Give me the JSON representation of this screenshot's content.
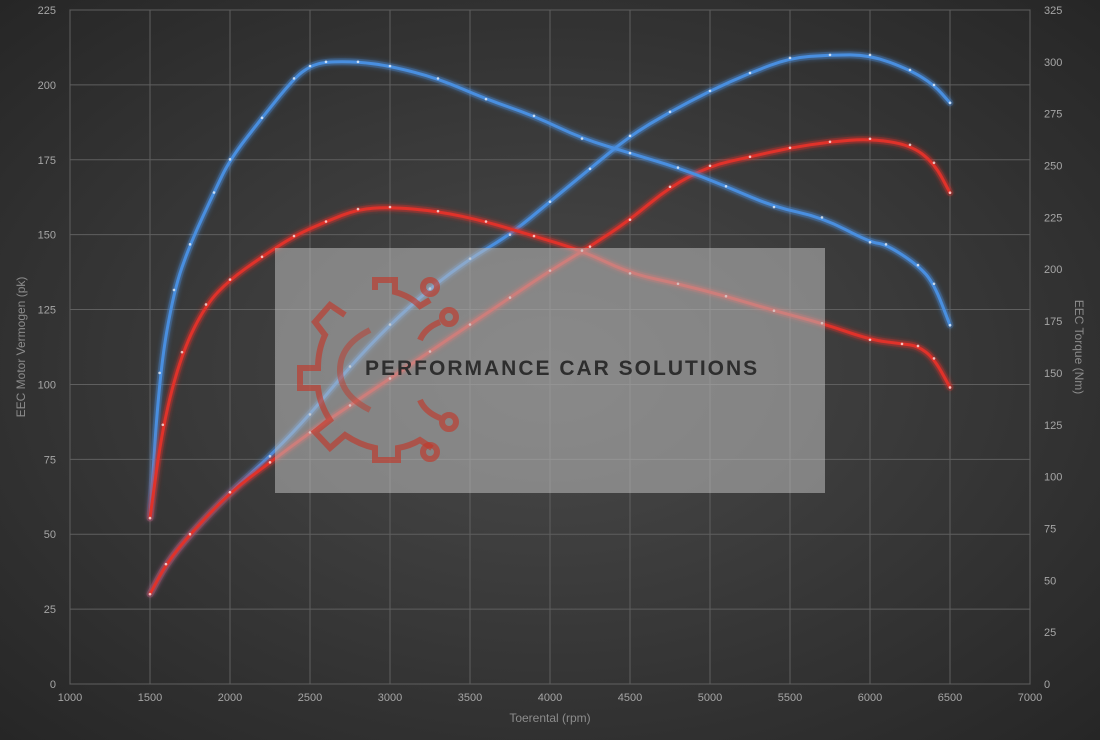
{
  "chart_data": {
    "type": "line",
    "title": "",
    "xlabel": "Toerental (rpm)",
    "ylabel_left": "EEC Motor Vermogen (pk)",
    "ylabel_right": "EEC Torque (Nm)",
    "xlim": [
      1000,
      7000
    ],
    "ylim_left": [
      0,
      225
    ],
    "ylim_right": [
      0,
      325
    ],
    "x_ticks": [
      1000,
      1500,
      2000,
      2500,
      3000,
      3500,
      4000,
      4500,
      5000,
      5500,
      6000,
      6500,
      7000
    ],
    "y_left_ticks": [
      0,
      25,
      50,
      75,
      100,
      125,
      150,
      175,
      200,
      225
    ],
    "y_right_ticks": [
      0,
      25,
      50,
      75,
      100,
      125,
      150,
      175,
      200,
      225,
      250,
      275,
      300,
      325
    ],
    "grid": true,
    "series": [
      {
        "axis": "left",
        "color": "#4a8fe0",
        "points": [
          [
            1500,
            30
          ],
          [
            1600,
            40
          ],
          [
            1750,
            50
          ],
          [
            2000,
            64
          ],
          [
            2250,
            76
          ],
          [
            2500,
            90
          ],
          [
            2750,
            106
          ],
          [
            3000,
            120
          ],
          [
            3250,
            132
          ],
          [
            3500,
            142
          ],
          [
            3750,
            150
          ],
          [
            4000,
            161
          ],
          [
            4250,
            172
          ],
          [
            4500,
            183
          ],
          [
            4750,
            191
          ],
          [
            5000,
            198
          ],
          [
            5250,
            204
          ],
          [
            5500,
            209
          ],
          [
            5750,
            210
          ],
          [
            6000,
            210
          ],
          [
            6250,
            205
          ],
          [
            6400,
            200
          ],
          [
            6500,
            194
          ]
        ]
      },
      {
        "axis": "left",
        "color": "#e0302a",
        "points": [
          [
            1500,
            30
          ],
          [
            1600,
            40
          ],
          [
            1750,
            50
          ],
          [
            2000,
            64
          ],
          [
            2250,
            74
          ],
          [
            2500,
            84
          ],
          [
            2750,
            93
          ],
          [
            3000,
            102
          ],
          [
            3250,
            111
          ],
          [
            3500,
            120
          ],
          [
            3750,
            129
          ],
          [
            4000,
            138
          ],
          [
            4250,
            146
          ],
          [
            4500,
            155
          ],
          [
            4750,
            166
          ],
          [
            5000,
            173
          ],
          [
            5250,
            176
          ],
          [
            5500,
            179
          ],
          [
            5750,
            181
          ],
          [
            6000,
            182
          ],
          [
            6250,
            180
          ],
          [
            6400,
            174
          ],
          [
            6500,
            164
          ]
        ]
      },
      {
        "axis": "right",
        "color": "#4a8fe0",
        "points": [
          [
            1500,
            80
          ],
          [
            1560,
            150
          ],
          [
            1650,
            190
          ],
          [
            1750,
            212
          ],
          [
            1900,
            237
          ],
          [
            2000,
            253
          ],
          [
            2200,
            273
          ],
          [
            2400,
            292
          ],
          [
            2500,
            298
          ],
          [
            2600,
            300
          ],
          [
            2800,
            300
          ],
          [
            3000,
            298
          ],
          [
            3300,
            292
          ],
          [
            3600,
            282
          ],
          [
            3900,
            274
          ],
          [
            4200,
            263
          ],
          [
            4500,
            256
          ],
          [
            4800,
            249
          ],
          [
            5100,
            240
          ],
          [
            5400,
            230
          ],
          [
            5700,
            225
          ],
          [
            6000,
            213
          ],
          [
            6100,
            212
          ],
          [
            6300,
            202
          ],
          [
            6400,
            193
          ],
          [
            6500,
            173
          ]
        ]
      },
      {
        "axis": "right",
        "color": "#e0302a",
        "points": [
          [
            1500,
            80
          ],
          [
            1580,
            125
          ],
          [
            1700,
            160
          ],
          [
            1850,
            183
          ],
          [
            2000,
            195
          ],
          [
            2200,
            206
          ],
          [
            2400,
            216
          ],
          [
            2600,
            223
          ],
          [
            2800,
            229
          ],
          [
            3000,
            230
          ],
          [
            3300,
            228
          ],
          [
            3600,
            223
          ],
          [
            3900,
            216
          ],
          [
            4200,
            209
          ],
          [
            4500,
            198
          ],
          [
            4800,
            193
          ],
          [
            5100,
            187
          ],
          [
            5400,
            180
          ],
          [
            5700,
            174
          ],
          [
            6000,
            166
          ],
          [
            6200,
            164
          ],
          [
            6300,
            163
          ],
          [
            6400,
            157
          ],
          [
            6500,
            143
          ]
        ]
      }
    ]
  },
  "watermark": {
    "text": "PERFORMANCE CAR SOLUTIONS"
  }
}
